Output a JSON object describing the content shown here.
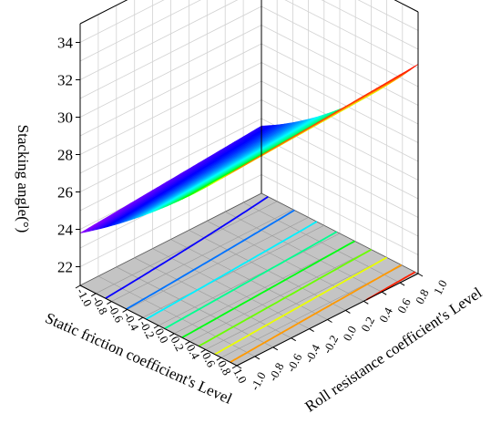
{
  "chart_data": {
    "type": "surface3d",
    "zlabel": "Stacking angle(°)",
    "xlabel": "Static friction coefficient's Level",
    "ylabel": "Roll resistance coefficient's Level",
    "zlim": [
      21,
      35
    ],
    "xlim": [
      -1,
      1
    ],
    "ylim": [
      -1,
      1
    ],
    "z_ticks": [
      "22",
      "24",
      "26",
      "28",
      "30",
      "32",
      "34"
    ],
    "x_ticks": [
      "-1.0",
      "-0.8",
      "-0.6",
      "-0.4",
      "-0.2",
      "0.0",
      "0.2",
      "0.4",
      "0.6",
      "0.8",
      "1.0"
    ],
    "y_ticks": [
      "-1.0",
      "-0.8",
      "-0.6",
      "-0.4",
      "-0.2",
      "0.0",
      "0.2",
      "0.4",
      "0.6",
      "0.8",
      "1.0"
    ],
    "surface_corners": [
      {
        "static_friction": -1,
        "roll_resistance": -1,
        "stacking_angle": 23.8
      },
      {
        "static_friction": 1,
        "roll_resistance": -1,
        "stacking_angle": 31.5
      },
      {
        "static_friction": 1,
        "roll_resistance": 1,
        "stacking_angle": 32.2
      },
      {
        "static_friction": -1,
        "roll_resistance": 1,
        "stacking_angle": 24.6
      }
    ],
    "colormap": "rainbow",
    "contour_projection": "floor",
    "grid": true
  }
}
